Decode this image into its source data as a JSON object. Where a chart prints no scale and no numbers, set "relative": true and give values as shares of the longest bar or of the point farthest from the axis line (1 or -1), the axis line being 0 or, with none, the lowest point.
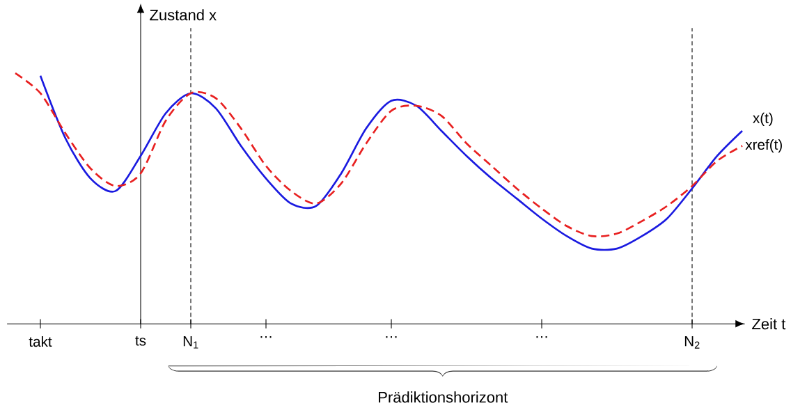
{
  "chart_data": {
    "type": "line",
    "relative": true,
    "xlabel": "Zeit t",
    "ylabel": "Zustand x",
    "categories": [
      null,
      "takt",
      null,
      null,
      null,
      "ts",
      null,
      "N$_{1}$",
      null,
      null,
      "…",
      null,
      null,
      null,
      null,
      "…",
      null,
      null,
      null,
      null,
      null,
      "…",
      null,
      null,
      null,
      null,
      null,
      "N$_{2}$",
      null,
      null
    ],
    "series": [
      {
        "name": "x(t)",
        "color": "#1a1ae0",
        "line_style": "solid",
        "values": [
          null,
          0.99,
          0.74,
          0.58,
          0.53,
          0.67,
          0.84,
          0.92,
          0.86,
          0.71,
          0.58,
          0.48,
          0.47,
          0.6,
          0.78,
          0.89,
          0.87,
          0.77,
          0.67,
          0.58,
          0.5,
          0.42,
          0.35,
          0.3,
          0.3,
          0.35,
          0.42,
          0.54,
          0.67,
          0.77
        ]
      },
      {
        "name": "xref(t)",
        "color": "#e82020",
        "line_style": "dashed",
        "values": [
          1.0,
          0.92,
          0.76,
          0.62,
          0.55,
          0.6,
          0.81,
          0.92,
          0.9,
          0.78,
          0.63,
          0.53,
          0.48,
          0.56,
          0.72,
          0.85,
          0.87,
          0.83,
          0.72,
          0.63,
          0.54,
          0.46,
          0.39,
          0.35,
          0.36,
          0.41,
          0.47,
          0.55,
          0.65,
          0.71
        ]
      }
    ],
    "ref_lines": [
      {
        "axis": "x",
        "value": "ts",
        "color": "#000000",
        "line_style": "solid"
      },
      {
        "axis": "x",
        "value": "N$_{1}$",
        "color": "#000000",
        "line_style": "dashed"
      },
      {
        "axis": "x",
        "value": "N$_{2}$",
        "color": "#000000",
        "line_style": "dashed"
      }
    ],
    "annotations": [
      "Prädiktionshorizont"
    ]
  }
}
